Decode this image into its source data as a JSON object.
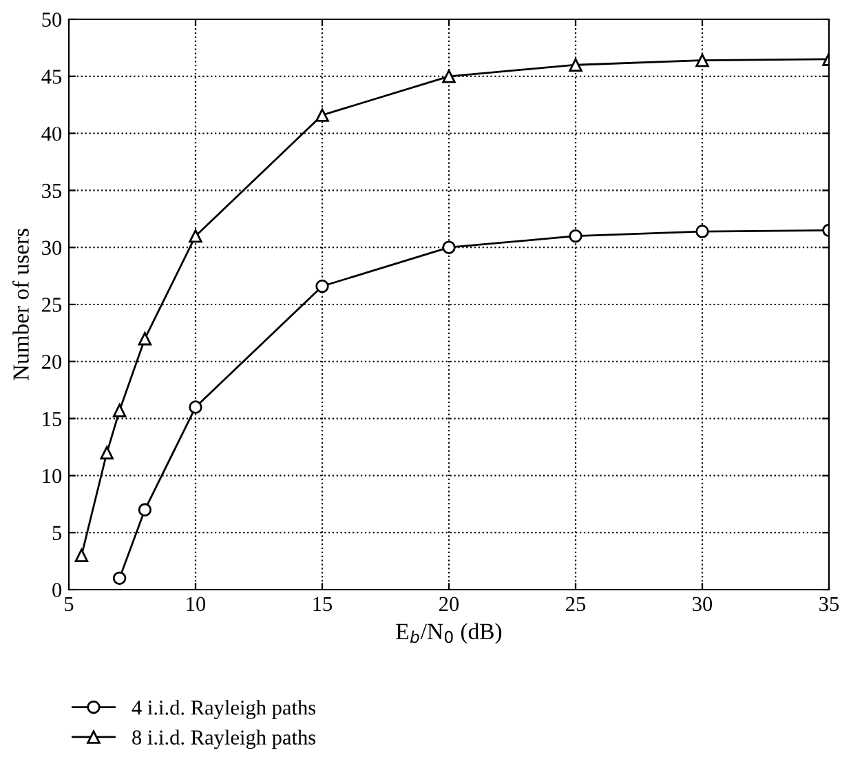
{
  "chart_data": {
    "type": "line",
    "xlabel": "E$_{b}$/N$_{0}$ (dB)",
    "ylabel": "Number of users",
    "xlim": [
      5,
      35
    ],
    "xticks": [
      5,
      10,
      15,
      20,
      25,
      30,
      35
    ],
    "ylim": [
      0,
      50
    ],
    "yticks": [
      0,
      5,
      10,
      15,
      20,
      25,
      30,
      35,
      40,
      45,
      50
    ],
    "grid": true,
    "legend": "bottom",
    "line_style": "solid",
    "series": [
      {
        "name": "4 i.i.d. Rayleigh paths",
        "color": "#000000",
        "marker": "circle",
        "x": [
          7,
          8,
          10,
          15,
          20,
          25,
          30,
          35
        ],
        "values": [
          1,
          7,
          16,
          26.6,
          30,
          31,
          31.4,
          31.5
        ]
      },
      {
        "name": "8 i.i.d. Rayleigh paths",
        "color": "#000000",
        "marker": "triangle",
        "x": [
          5.5,
          6.5,
          7,
          8,
          10,
          15,
          20,
          25,
          30,
          35
        ],
        "values": [
          3,
          12,
          15.7,
          22,
          31,
          41.6,
          45,
          46,
          46.4,
          46.5
        ]
      }
    ]
  }
}
